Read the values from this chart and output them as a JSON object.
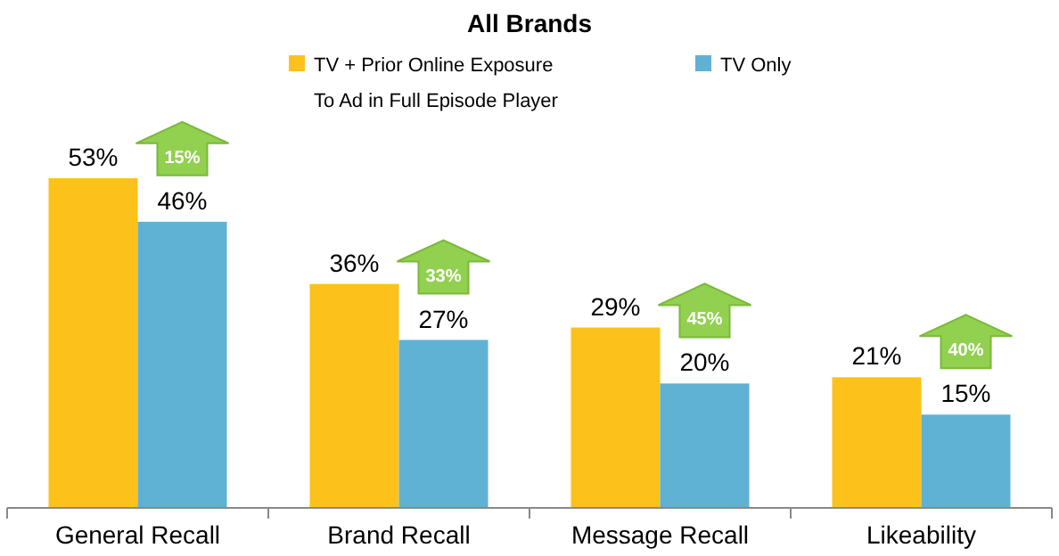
{
  "chart_data": {
    "type": "bar",
    "title": "All Brands",
    "categories": [
      "General Recall",
      "Brand Recall",
      "Message Recall",
      "Likeability"
    ],
    "series": [
      {
        "name": "TV + Prior Online Exposure",
        "color": "#fcc21b",
        "values": [
          53,
          36,
          29,
          21
        ],
        "value_labels": [
          "53%",
          "36%",
          "29%",
          "21%"
        ]
      },
      {
        "name": "TV Only",
        "color": "#5fb2d4",
        "values": [
          46,
          27,
          20,
          15
        ],
        "value_labels": [
          "46%",
          "27%",
          "20%",
          "15%"
        ]
      }
    ],
    "legend": "top",
    "annotations": [
      "To Ad in Full Episode Player",
      "15%",
      "33%",
      "45%",
      "40%"
    ]
  }
}
